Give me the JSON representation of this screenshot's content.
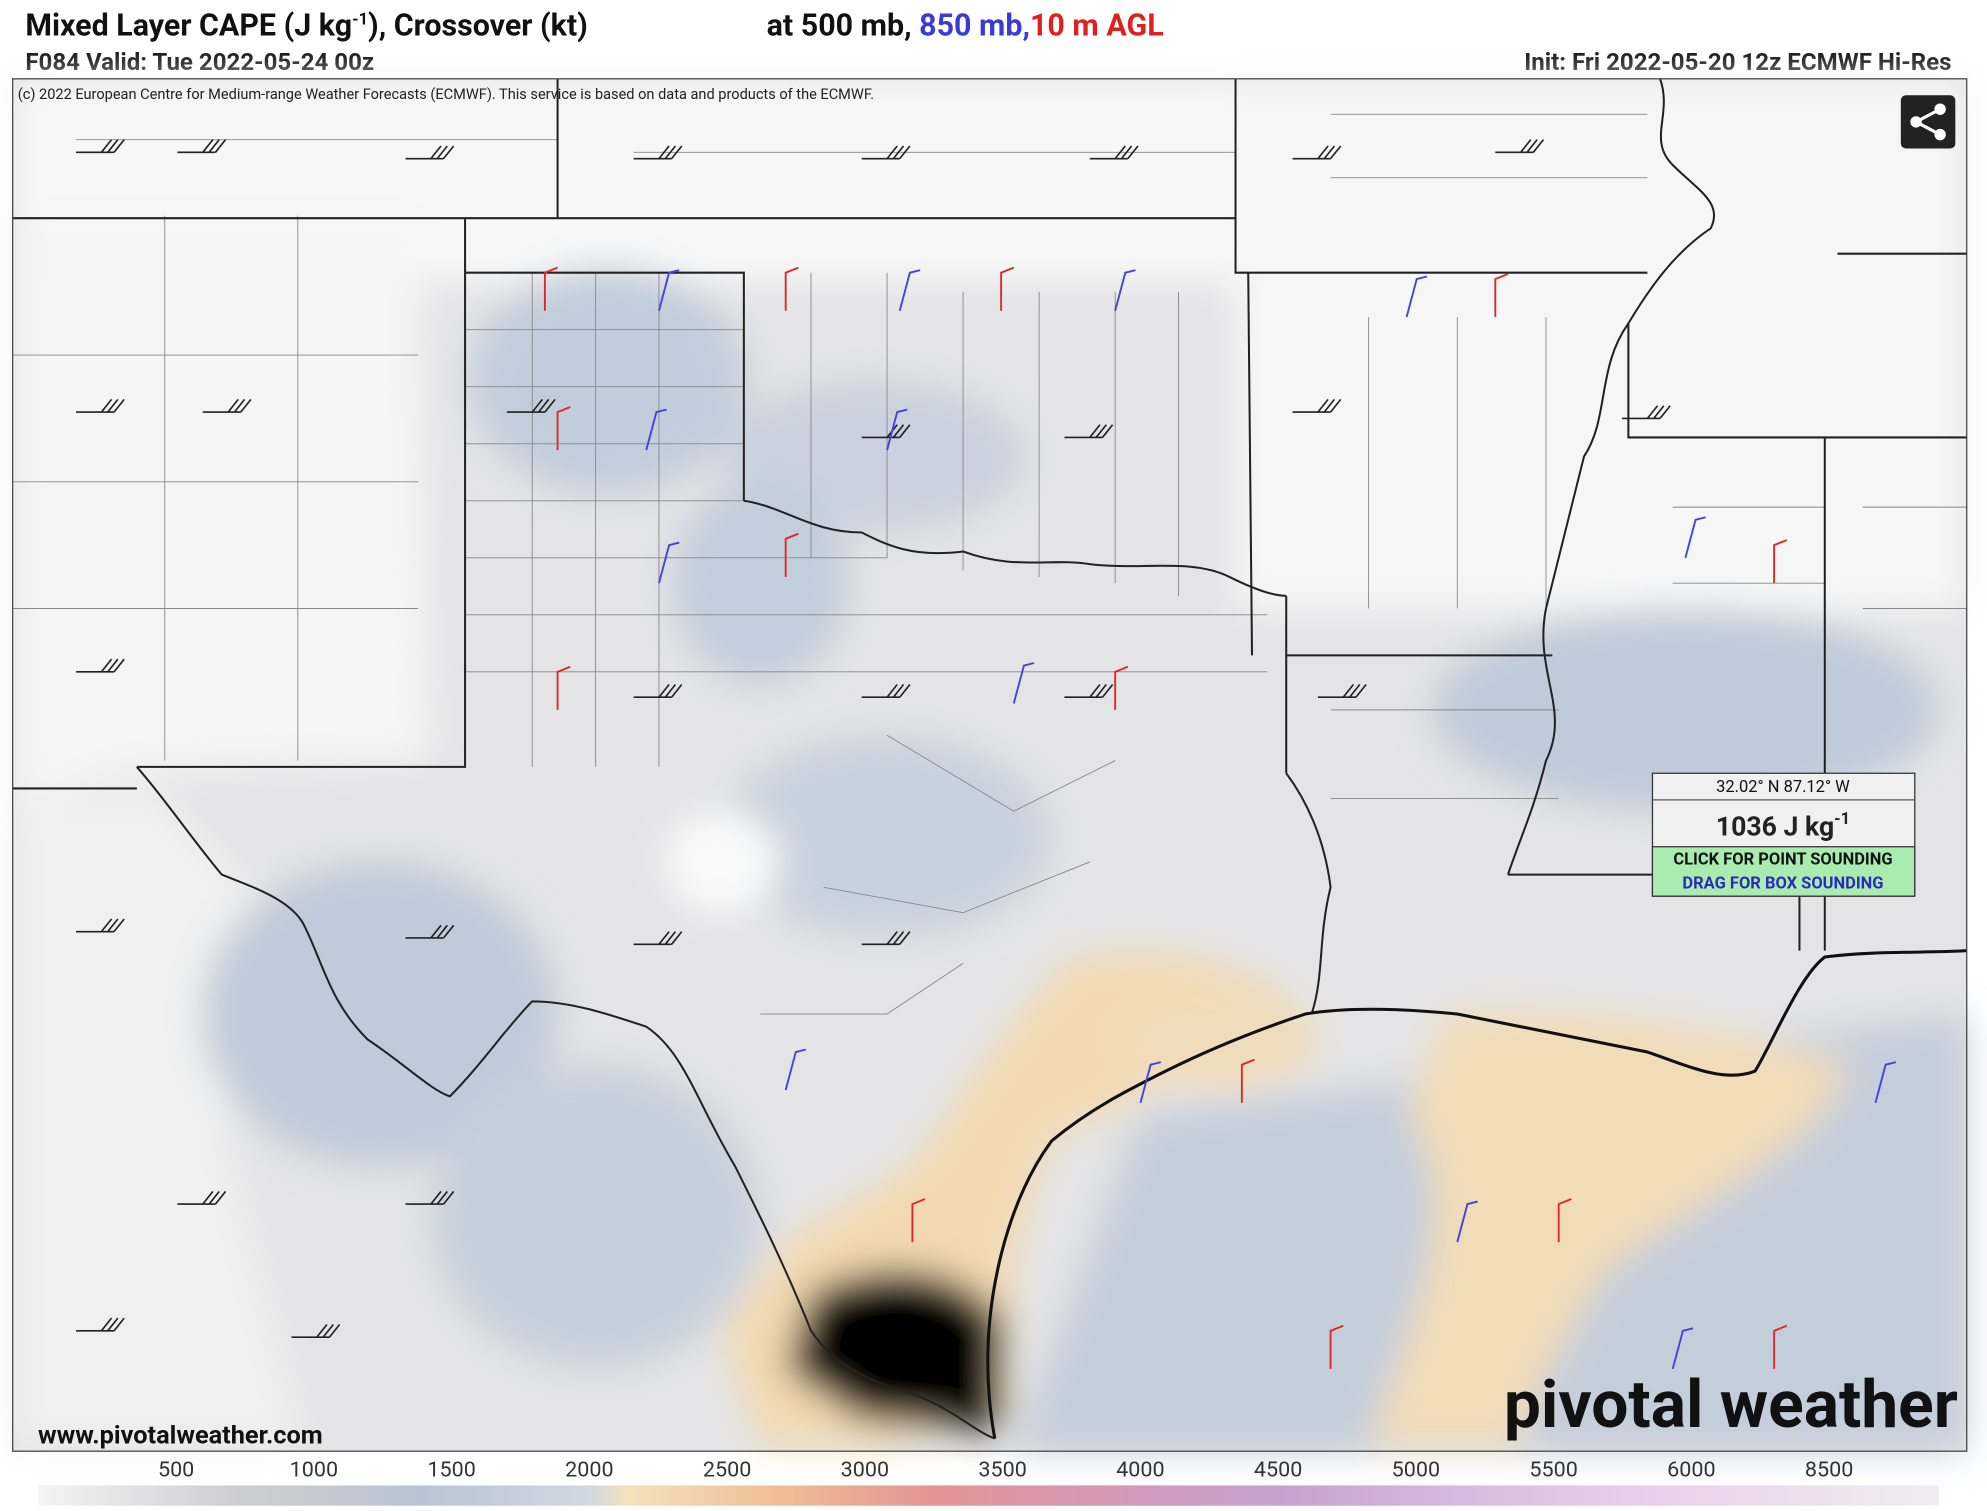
{
  "header": {
    "title": "Mixed Layer CAPE (J kg",
    "title_sup": "-1",
    "title_rest": "), Crossover (kt)",
    "level_prefix": "at 500 mb,",
    "level_850": "850 mb,",
    "level_10m": "10 m AGL",
    "valid": "F084 Valid: Tue 2022-05-24 00z",
    "init": "Init: Fri 2022-05-20 12z ECMWF Hi-Res"
  },
  "map": {
    "copyright": "(c) 2022 European Centre for Medium-range Weather Forecasts (ECMWF). This service is based on data and products of the ECMWF.",
    "site": "www.pivotalweather.com",
    "logo": "pivotal weather"
  },
  "tooltip": {
    "coords": "32.02° N 87.12° W",
    "value": "1036 J kg",
    "value_sup": "-1",
    "click": "CLICK FOR POINT SOUNDING",
    "drag": "DRAG FOR BOX SOUNDING"
  },
  "colorbar": {
    "labels": [
      500,
      1000,
      1500,
      2000,
      2500,
      3000,
      3500,
      4000,
      4500,
      5000,
      5500,
      6000,
      8500
    ]
  }
}
